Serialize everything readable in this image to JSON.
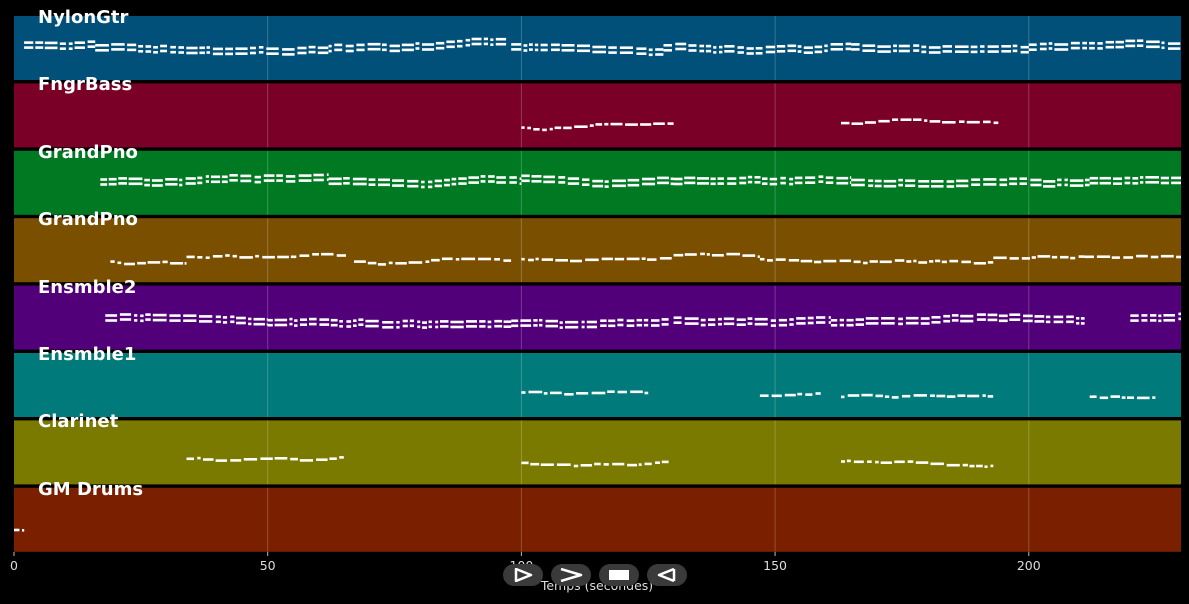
{
  "chart_data": {
    "type": "piano-roll",
    "xlabel": "Temps (secondes)",
    "xlim": [
      0,
      230
    ],
    "xticks": [
      0,
      50,
      100,
      150,
      200
    ],
    "tracks": [
      {
        "name": "NylonGtr",
        "color": "#00507a",
        "segments": [
          [
            2,
            16
          ],
          [
            16,
            62
          ],
          [
            62,
            97
          ],
          [
            98,
            128
          ],
          [
            128,
            165
          ],
          [
            165,
            200
          ],
          [
            200,
            230
          ]
        ]
      },
      {
        "name": "FngrBass",
        "color": "#7a0028",
        "segments": [
          [
            100,
            130
          ],
          [
            163,
            194
          ]
        ]
      },
      {
        "name": "GrandPno",
        "color": "#007a22",
        "segments": [
          [
            17,
            62
          ],
          [
            62,
            100
          ],
          [
            100,
            130
          ],
          [
            130,
            165
          ],
          [
            165,
            212
          ],
          [
            212,
            230
          ]
        ]
      },
      {
        "name": "GrandPno",
        "color": "#7a5000",
        "segments": [
          [
            19,
            34
          ],
          [
            34,
            66
          ],
          [
            67,
            98
          ],
          [
            100,
            130
          ],
          [
            130,
            147
          ],
          [
            147,
            193
          ],
          [
            193,
            211
          ],
          [
            211,
            230
          ]
        ]
      },
      {
        "name": "Ensmble2",
        "color": "#52007a",
        "segments": [
          [
            18,
            50
          ],
          [
            50,
            78
          ],
          [
            78,
            98
          ],
          [
            98,
            129
          ],
          [
            130,
            161
          ],
          [
            161,
            211
          ],
          [
            220,
            230
          ]
        ]
      },
      {
        "name": "Ensmble1",
        "color": "#007a7a",
        "segments": [
          [
            100,
            125
          ],
          [
            147,
            159
          ],
          [
            163,
            193
          ],
          [
            212,
            225
          ]
        ]
      },
      {
        "name": "Clarinet",
        "color": "#7a7a00",
        "segments": [
          [
            34,
            65
          ],
          [
            100,
            129
          ],
          [
            163,
            193
          ]
        ]
      },
      {
        "name": "GM Drums",
        "color": "#7a2000",
        "segments": [
          [
            0,
            2
          ]
        ]
      }
    ]
  },
  "controls": [
    {
      "name": "play-button",
      "icon": "play-icon"
    },
    {
      "name": "fast-forward-button",
      "icon": "fast-forward-icon"
    },
    {
      "name": "stop-button",
      "icon": "stop-icon"
    },
    {
      "name": "rewind-button",
      "icon": "rewind-icon"
    }
  ]
}
